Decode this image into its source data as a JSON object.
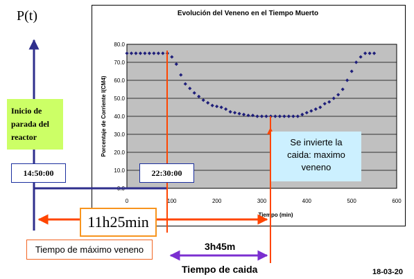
{
  "slide": {
    "p_label": "P(t)",
    "shutdown_label_lines": [
      "Inicio de",
      "parada del",
      "reactor"
    ],
    "time_start": "14:50:00",
    "time_max": "22:30:00",
    "reversal_note_lines": [
      "Se invierte la",
      "caida: maximo",
      "veneno"
    ],
    "span_total": "11h25min",
    "max_poison_label": "Tiempo de máximo veneno",
    "span_fall": "3h45m",
    "fall_label": "Tiempo de caida",
    "date": "18-03-20",
    "colors": {
      "navy": "#2e2e8c",
      "orange_red": "#ff4500",
      "purple": "#7b2fd0",
      "green_box": "#ccff66",
      "cyan_box": "#ccf0ff",
      "plot_bg": "#c0c0c0",
      "marker": "#1f1f7a"
    }
  },
  "chart_data": {
    "type": "scatter",
    "title": "Evolución del Veneno en el Tiempo Muerto",
    "xlabel": "Tiempo (min)",
    "ylabel": "Porcentaje de Corriente I(CM4)",
    "xlim": [
      0,
      600
    ],
    "ylim": [
      0,
      80
    ],
    "xticks": [
      "0",
      "100",
      "200",
      "300",
      "400",
      "500",
      "600"
    ],
    "yticks": [
      "0.0",
      "10.0",
      "20.0",
      "30.0",
      "40.0",
      "50.0",
      "60.0",
      "70.0",
      "80.0"
    ],
    "grid": true,
    "series": [
      {
        "x": [
          0,
          10,
          20,
          30,
          40,
          50,
          60,
          70,
          80,
          90,
          100,
          110,
          120,
          130,
          140,
          150,
          160,
          170,
          180,
          190,
          200,
          210,
          220,
          230,
          240,
          250,
          260,
          270,
          280,
          290,
          300,
          310,
          320,
          330,
          340,
          350,
          360,
          370,
          380,
          390,
          400,
          410,
          420,
          430,
          440,
          450,
          460,
          470,
          480,
          490,
          500,
          510,
          520,
          530,
          540,
          550
        ],
        "y": [
          75,
          75,
          75,
          75,
          75,
          75,
          75,
          75,
          75,
          75,
          73,
          69,
          63,
          58,
          55.5,
          53,
          51,
          49,
          47.5,
          46,
          45.5,
          45,
          44,
          42.5,
          42,
          41.5,
          41,
          40.5,
          40.5,
          40,
          40,
          40,
          40,
          40,
          40,
          40,
          40,
          40,
          40,
          41,
          42,
          43,
          44,
          45,
          47,
          48,
          50,
          52,
          55,
          60,
          65,
          70,
          73,
          75,
          75,
          75
        ]
      }
    ]
  }
}
